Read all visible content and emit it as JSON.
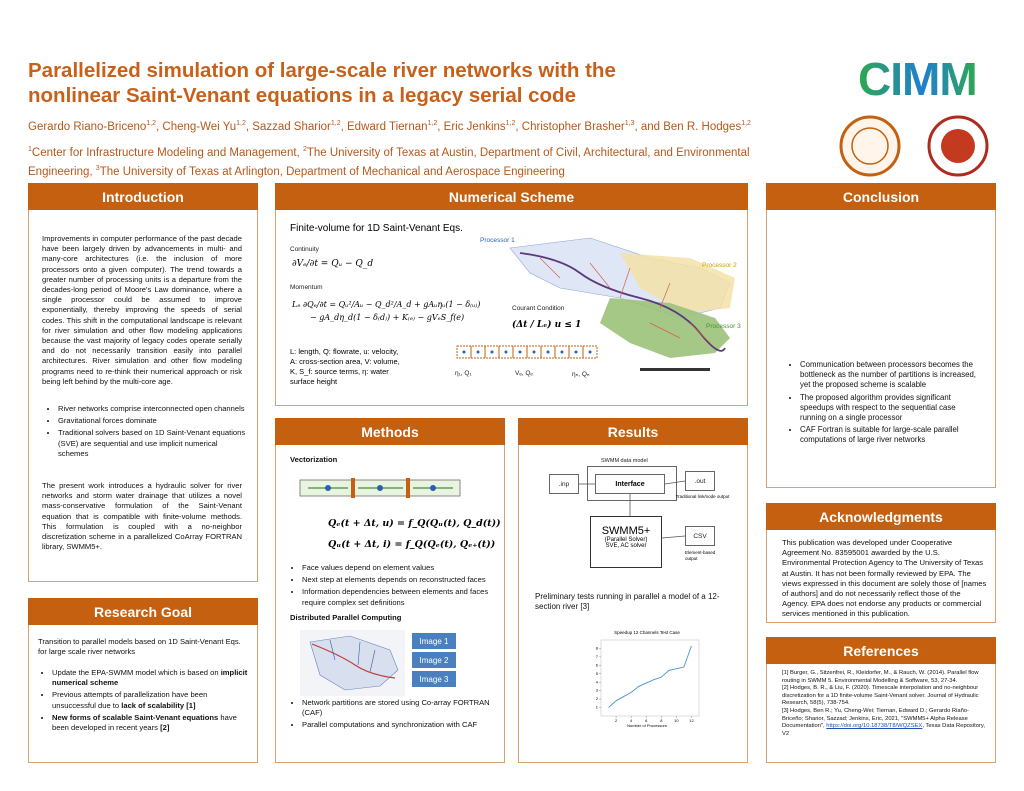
{
  "header": {
    "title_lines": [
      "Parallelized simulation of large-scale river networks with the",
      "nonlinear Saint-Venant equations in a legacy serial code"
    ],
    "authors": [
      {
        "text": "Gerardo Riano-Briceno",
        "sup": "1,2"
      },
      {
        "text": ", Cheng-Wei Yu",
        "sup": "1,2"
      },
      {
        "text": ", Sazzad Sharior",
        "sup": "1,2"
      },
      {
        "text": ", Edward Tiernan",
        "sup": "1,2"
      },
      {
        "text": ", Eric Jenkins",
        "sup": "1,2"
      },
      {
        "text": ", Christopher Brasher",
        "sup": "1,3"
      },
      {
        "text": ", and Ben R. Hodges",
        "sup": "1,2"
      }
    ],
    "affiliations": [
      {
        "sup": "1",
        "text": "Center for Infrastructure Modeling and Management, "
      },
      {
        "sup": "2",
        "text": "The University of Texas at Austin, Department of Civil, Architectural, and Environmental Engineering, "
      },
      {
        "sup": "3",
        "text": "The University of Texas at Arlington, Department of Mechanical and Aerospace Engineering"
      }
    ],
    "logo": "CIMM"
  },
  "introduction": {
    "heading": "Introduction",
    "paragraph_1": "Improvements in computer performance of the past decade have been largely driven by advancements in multi- and many-core architectures (i.e. the inclusion of more processors onto a given computer). The trend towards a greater number of processing units is a departure from the decades-long period of Moore's Law dominance, where a single processor could be assumed to improve exponentially, thereby improving the speeds of serial codes. This shift in the computational landscape is relevant for river simulation and other flow modeling applications because the vast majority of legacy codes operate serially and do not necessarily transition easily into parallel architectures. River simulation and other flow modeling programs need to re-think their numerical approach or risk being left behind by the multi-core age.",
    "bullets": [
      "River networks comprise interconnected open channels",
      "Gravitational forces dominate",
      "Traditional solvers based on 1D Saint-Venant equations (SVE) are sequential and use implicit numerical schemes"
    ],
    "paragraph_2": "The present work introduces a hydraulic solver for river networks and storm water drainage that utilizes a novel mass-conservative formulation of the Saint-Venant equation that is compatible with finite-volume methods. This formulation is coupled with a no-neighbor discretization scheme in a parallelized CoArray FORTRAN library, SWMM5+."
  },
  "research_goal": {
    "heading": "Research Goal",
    "intro": "Transition to parallel models based on 1D Saint-Venant Eqs. for large scale river networks",
    "bullets": [
      [
        {
          "text": "Update the EPA-SWMM model which is based on ",
          "bold": false
        },
        {
          "text": "implicit numerical scheme",
          "bold": true
        }
      ],
      [
        {
          "text": "Previous attempts of parallelization have been unsuccessful due to ",
          "bold": false
        },
        {
          "text": "lack of scalability [1]",
          "bold": true
        }
      ],
      [
        {
          "text": "New forms of scalable Saint-Venant equations",
          "bold": true
        },
        {
          "text": " have been developed in recent years ",
          "bold": false
        },
        {
          "text": "[2]",
          "bold": true
        }
      ]
    ]
  },
  "numerical_scheme": {
    "heading": "Numerical Scheme",
    "figure_title": "Finite-volume for 1D Saint-Venant Eqs.",
    "continuity_label": "Continuity",
    "continuity_eq": "∂Vₑ/∂t = Qᵤ − Q_d",
    "momentum_label": "Momentum",
    "momentum_eq": [
      "Lₑ ∂Qₑ/∂t = Qᵤ²/Aᵤ − Q_d²/A_d + gAᵤηᵤ(1 − δ₍ᵤ₎)",
      "− gA_dη_d(1 − δ₍d₎) + K₍ₑ₎ − gVₑS_f(e)"
    ],
    "legend": [
      "L: length, Q: flowrate, u: velocity,",
      "A: cross-section area, V: volume,",
      "K, S_f: source terms, η: water",
      "surface height"
    ],
    "processors": [
      "Processor 1",
      "Processor 2",
      "Processor 3"
    ],
    "courant_label": "Courant Condition",
    "courant_eq": "(Δt / Lₑ) u ≤ 1",
    "grid_labels": [
      "η₁, Q₁",
      "Vₑ, Qₑ",
      "ηₙ, Qₙ"
    ]
  },
  "methods": {
    "heading": "Methods",
    "vectorization": "Vectorization",
    "equations": [
      "Qₑ(t + Δt, u) = f_Q(Qᵤ(t), Q_d(t))",
      "Qᵤ(t + Δt, i) = f_Q(Qₑ(t), Qₑ₊(t))"
    ],
    "bullets_1": [
      "Face values depend on element values",
      "Next step at elements depends on reconstructed faces",
      "Information dependencies between elements and faces require complex set definitions"
    ],
    "distributed": "Distributed Parallel Computing",
    "images": [
      "Image 1",
      "Image 2",
      "Image 3"
    ],
    "bullets_2": [
      "Network partitions are stored using Co-array FORTRAN (CAF)",
      "Parallel computations and synchronization with CAF"
    ]
  },
  "results": {
    "heading": "Results",
    "diagram": {
      "data_model": "SWMM data model",
      "inp": ".inp",
      "interface": "Interface",
      "out": ".out",
      "traditional": "Traditional link/node output",
      "solver": [
        "SWMM5+",
        "(Parallel Solver)",
        "SVE, AC solver"
      ],
      "csv": "CSV",
      "element_output": "Element-based output"
    },
    "caption": "Preliminary tests running in parallel a model of a 12-section river [3]",
    "speedup_chart": {
      "type": "line",
      "title": "Speedup 12 Channels Test Case",
      "x_label": "Number of Processors",
      "x": [
        1,
        2,
        3,
        4,
        5,
        6,
        7,
        8,
        9,
        10,
        11,
        12
      ],
      "values": [
        1,
        1.8,
        2.3,
        2.8,
        3.5,
        3.9,
        4.3,
        4.6,
        5.4,
        5.6,
        5.8,
        8.3
      ],
      "color": "#4a90d9",
      "xlim": [
        0,
        13
      ],
      "ylim": [
        0,
        9
      ],
      "xticks": [
        2,
        4,
        6,
        8,
        10,
        12
      ],
      "yticks": [
        1,
        2,
        3,
        4,
        5,
        6,
        7,
        8
      ]
    }
  },
  "conclusion": {
    "heading": "Conclusion",
    "bullets": [
      "Communication between processors becomes the bottleneck as the number of partitions is increased, yet the proposed scheme is scalable",
      "The proposed algorithm provides significant speedups with respect to the sequential case running on a single processor",
      "CAF Fortran is suitable for large-scale parallel computations of large river networks"
    ]
  },
  "acknowledgments": {
    "heading": "Acknowledgments",
    "text": "This publication was developed under Cooperative Agreement No. 83595001 awarded by the U.S. Environmental Protection Agency to The University of Texas at Austin. It has not been formally reviewed by EPA. The views expressed in this document are solely those of [names of authors] and do not necessarily reflect those of the Agency. EPA does not endorse any products or commercial services mentioned in this publication."
  },
  "references": {
    "heading": "References",
    "items": [
      [
        {
          "text": "[1] Burger, G., Sitzenfrei, R., Kleidorfer, M., & Rauch, W. (2014). Parallel flow routing in SWMM 5. Environmental Modelling & Software, 53, 27-34.",
          "bold": false
        }
      ],
      [
        {
          "text": "[2] Hodges, B. R., & Liu, F. (2020). Timescale interpolation and no-neighbour discretization for a 1D finite-volume Saint-Venant solver. Journal of Hydraulic Research, 58(5), 738-754.",
          "bold": false
        }
      ],
      [
        {
          "text": "[3] Hodges, Ben R.; Yu, Cheng-Wei; Tiernan, Edward D.; Gerardo Riaño-Briceño; Sharior, Sazzad; Jenkins, Eric, 2021, \"SWMM5+ Alpha Release Documentation\", ",
          "bold": false
        },
        {
          "text": "https://doi.org/10.18738/T8/WQZSEX",
          "bold": false,
          "link": true
        },
        {
          "text": ", Texas Data Repository, V2",
          "bold": false
        }
      ]
    ]
  }
}
